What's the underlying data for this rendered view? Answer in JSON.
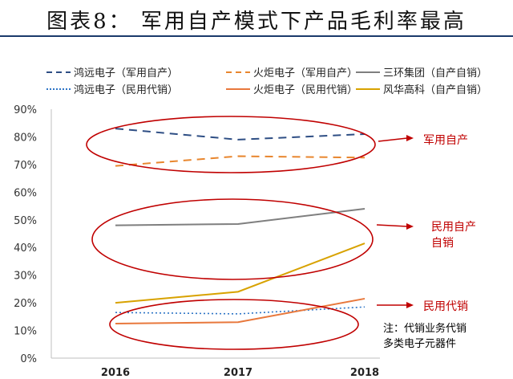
{
  "title": "图表8：  军用自产模式下产品毛利率最高",
  "chart_data": {
    "type": "line",
    "categories": [
      "2016",
      "2017",
      "2018"
    ],
    "ylim": [
      0,
      90
    ],
    "yticks": [
      0,
      10,
      20,
      30,
      40,
      50,
      60,
      70,
      80,
      90
    ],
    "ytick_format": "%",
    "grid": false,
    "legend_position": "top",
    "series": [
      {
        "name": "鸿远电子（军用自产）",
        "values": [
          83,
          79,
          81
        ],
        "color": "#2e4e84",
        "dash": "long-dash"
      },
      {
        "name": "火炬电子（军用自产）",
        "values": [
          69.5,
          73,
          72.5
        ],
        "color": "#e8862e",
        "dash": "long-dash"
      },
      {
        "name": "三环集团（自产自销）",
        "values": [
          48,
          48.5,
          54
        ],
        "color": "#7f7f7f",
        "dash": "solid"
      },
      {
        "name": "鸿远电子（民用代销）",
        "values": [
          16.5,
          16,
          18.5
        ],
        "color": "#2e75c6",
        "dash": "dotted"
      },
      {
        "name": "火炬电子（民用代销）",
        "values": [
          12.5,
          13,
          21.5
        ],
        "color": "#e8783c",
        "dash": "solid"
      },
      {
        "name": "风华高科（自产自销）",
        "values": [
          20,
          24,
          41.5
        ],
        "color": "#d8a200",
        "dash": "solid"
      }
    ],
    "annotations": [
      {
        "label": "军用自产",
        "color": "#c00000"
      },
      {
        "label": "民用自产\n自销",
        "color": "#c00000"
      },
      {
        "label": "民用代销",
        "color": "#c00000"
      },
      {
        "label": "注：代销业务代销\n多类电子元器件",
        "color": "#000000"
      }
    ]
  }
}
